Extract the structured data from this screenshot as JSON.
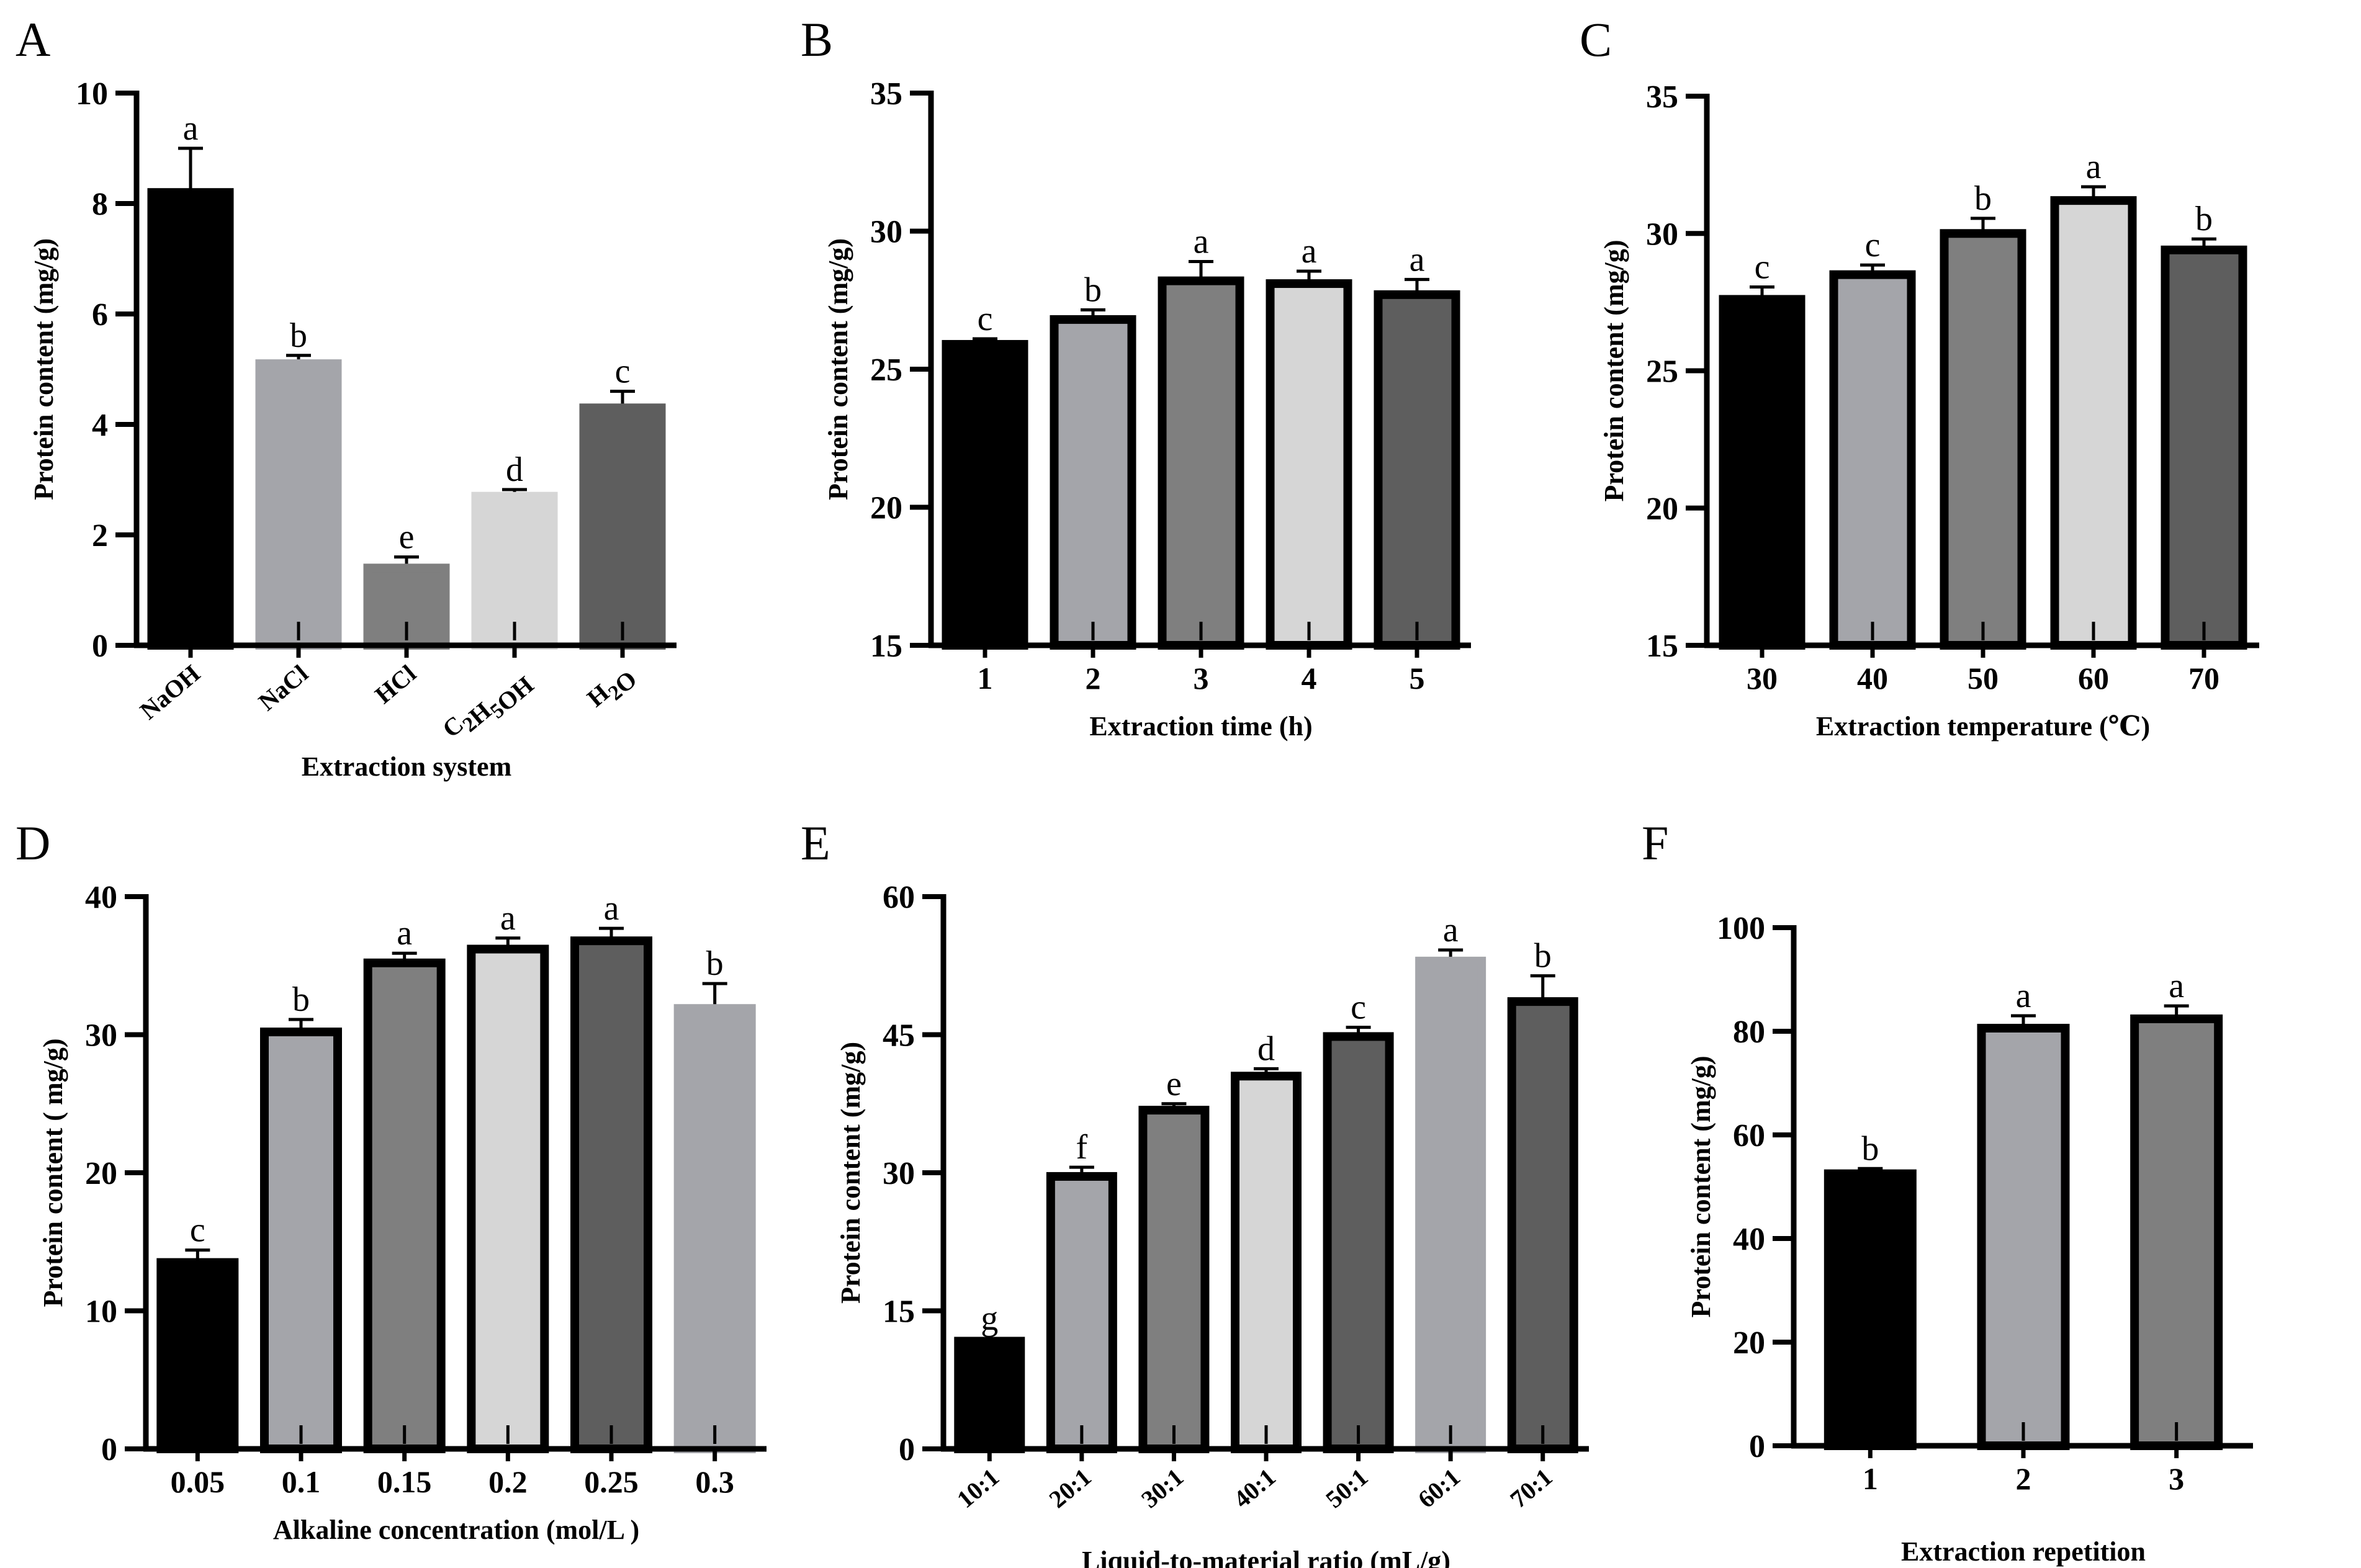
{
  "chart_data": [
    {
      "panel": "A",
      "type": "bar",
      "categories": [
        "NaOH",
        "NaCl",
        "HCl",
        "C2H5OH",
        "H2O"
      ],
      "values": [
        8.2,
        5.1,
        1.4,
        2.7,
        4.3
      ],
      "errors": [
        0.8,
        0.15,
        0.2,
        0.12,
        0.3
      ],
      "letters": [
        "a",
        "b",
        "e",
        "d",
        "c"
      ],
      "colors": [
        "#000000",
        "#a4a5aa",
        "#7f7f7f",
        "#d6d6d6",
        "#5e5e5e"
      ],
      "xlabel": "Extraction system",
      "ylabel": "Protein content (mg/g)",
      "ylim": [
        0,
        10
      ],
      "yticks": [
        0,
        2,
        4,
        6,
        8,
        10
      ],
      "tick_rotate": true
    },
    {
      "panel": "B",
      "type": "bar",
      "categories": [
        "1",
        "2",
        "3",
        "4",
        "5"
      ],
      "values": [
        25.9,
        26.8,
        28.2,
        28.1,
        27.7
      ],
      "errors": [
        0.2,
        0.35,
        0.7,
        0.45,
        0.55
      ],
      "letters": [
        "c",
        "b",
        "a",
        "a",
        "a"
      ],
      "colors": [
        "#000000",
        "#a4a5aa",
        "#7f7f7f",
        "#d6d6d6",
        "#5e5e5e"
      ],
      "xlabel": "Extraction time (h)",
      "ylabel": "Protein content (mg/g)",
      "ylim": [
        15,
        35
      ],
      "yticks": [
        15,
        20,
        25,
        30,
        35
      ],
      "tick_rotate": false
    },
    {
      "panel": "C",
      "type": "bar",
      "categories": [
        "30",
        "40",
        "50",
        "60",
        "70"
      ],
      "values": [
        27.6,
        28.5,
        30.0,
        31.2,
        29.4
      ],
      "errors": [
        0.45,
        0.35,
        0.55,
        0.5,
        0.4
      ],
      "letters": [
        "c",
        "c",
        "b",
        "a",
        "b"
      ],
      "colors": [
        "#000000",
        "#a4a5aa",
        "#7f7f7f",
        "#d6d6d6",
        "#5e5e5e"
      ],
      "xlabel": "Extraction temperature (℃)",
      "ylabel": "Protein content (mg/g)",
      "ylim": [
        15,
        35
      ],
      "yticks": [
        15,
        20,
        25,
        30,
        35
      ],
      "tick_rotate": false
    },
    {
      "panel": "D",
      "type": "bar",
      "categories": [
        "0.05",
        "0.1",
        "0.15",
        "0.2",
        "0.25",
        "0.3"
      ],
      "values": [
        13.5,
        30.2,
        35.2,
        36.2,
        36.8,
        31.9
      ],
      "errors": [
        0.9,
        0.9,
        0.7,
        0.8,
        0.9,
        1.8
      ],
      "letters": [
        "c",
        "b",
        "a",
        "a",
        "a",
        "b"
      ],
      "colors": [
        "#000000",
        "#a4a5aa",
        "#7f7f7f",
        "#d6d6d6",
        "#5e5e5e",
        "#a4a5aa"
      ],
      "xlabel": "Alkaline concentration (mol/L )",
      "ylabel": "Protein content ( mg/g)",
      "ylim": [
        0,
        40
      ],
      "yticks": [
        0,
        10,
        20,
        30,
        40
      ],
      "tick_rotate": false
    },
    {
      "panel": "E",
      "type": "bar",
      "categories": [
        "10:1",
        "20:1",
        "30:1",
        "40:1",
        "50:1",
        "60:1",
        "70:1"
      ],
      "values": [
        11.7,
        29.6,
        36.8,
        40.5,
        44.8,
        53.0,
        48.6
      ],
      "errors": [
        0.3,
        1.0,
        0.7,
        0.8,
        1.0,
        1.2,
        2.8
      ],
      "letters": [
        "g",
        "f",
        "e",
        "d",
        "c",
        "a",
        "b"
      ],
      "colors": [
        "#000000",
        "#a4a5aa",
        "#7f7f7f",
        "#d6d6d6",
        "#5e5e5e",
        "#a4a5aa",
        "#5e5e5e"
      ],
      "xlabel": "Liquid-to-material ratio (mL/g)",
      "ylabel": "Protein content (mg/g)",
      "ylim": [
        0,
        60
      ],
      "yticks": [
        0,
        15,
        30,
        45,
        60
      ],
      "tick_rotate": true
    },
    {
      "panel": "F",
      "type": "bar",
      "categories": [
        "1",
        "2",
        "3"
      ],
      "values": [
        52.5,
        80.6,
        82.4
      ],
      "errors": [
        1.0,
        2.4,
        2.5
      ],
      "letters": [
        "b",
        "a",
        "a"
      ],
      "colors": [
        "#000000",
        "#a4a5aa",
        "#7f7f7f"
      ],
      "xlabel": "Extraction repetition",
      "ylabel": "Protein content (mg/g)",
      "ylim": [
        0,
        100
      ],
      "yticks": [
        0,
        20,
        40,
        60,
        80,
        100
      ],
      "tick_rotate": false
    }
  ]
}
